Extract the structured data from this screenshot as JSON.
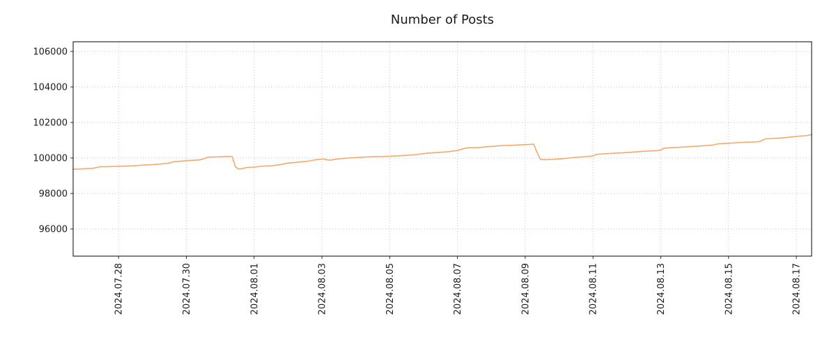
{
  "title": "Number of Posts",
  "colors": {
    "background": "#ffffff",
    "line": "#f4a96c",
    "grid": "#b3b3b3",
    "frame": "#000000",
    "text": "#1a1a1a"
  },
  "chart_data": {
    "type": "line",
    "title": "Number of Posts",
    "xlabel": "",
    "ylabel": "",
    "grid": true,
    "legend": false,
    "x_unit": "days since 2024-07-26 00:00",
    "xlim": [
      0.66,
      22.45
    ],
    "ylim": [
      94470,
      106550
    ],
    "y_ticks": [
      96000,
      98000,
      100000,
      102000,
      104000,
      106000
    ],
    "x_ticks": [
      2,
      4,
      6,
      8,
      10,
      12,
      14,
      16,
      18,
      20,
      22
    ],
    "x_tick_labels": [
      "2024.07.28",
      "2024.07.30",
      "2024.08.01",
      "2024.08.03",
      "2024.08.05",
      "2024.08.07",
      "2024.08.09",
      "2024.08.11",
      "2024.08.13",
      "2024.08.15",
      "2024.08.17"
    ],
    "line_color": "#f4a96c",
    "grid_color": "#b3b3b3",
    "text_color": "#1a1a1a",
    "series": [
      {
        "name": "Number of Posts",
        "points": [
          [
            0.66,
            99370
          ],
          [
            0.85,
            99375
          ],
          [
            1.0,
            99400
          ],
          [
            1.25,
            99420
          ],
          [
            1.45,
            99505
          ],
          [
            1.7,
            99515
          ],
          [
            1.95,
            99530
          ],
          [
            2.2,
            99545
          ],
          [
            2.45,
            99560
          ],
          [
            2.7,
            99600
          ],
          [
            2.95,
            99620
          ],
          [
            3.2,
            99655
          ],
          [
            3.45,
            99700
          ],
          [
            3.65,
            99800
          ],
          [
            3.85,
            99820
          ],
          [
            4.0,
            99850
          ],
          [
            4.2,
            99870
          ],
          [
            4.4,
            99895
          ],
          [
            4.5,
            99950
          ],
          [
            4.65,
            100050
          ],
          [
            4.85,
            100060
          ],
          [
            5.05,
            100070
          ],
          [
            5.2,
            100090
          ],
          [
            5.35,
            100080
          ],
          [
            5.45,
            99500
          ],
          [
            5.55,
            99370
          ],
          [
            5.65,
            99405
          ],
          [
            5.8,
            99470
          ],
          [
            5.95,
            99480
          ],
          [
            6.1,
            99505
          ],
          [
            6.3,
            99550
          ],
          [
            6.5,
            99560
          ],
          [
            6.7,
            99605
          ],
          [
            6.9,
            99680
          ],
          [
            7.05,
            99720
          ],
          [
            7.2,
            99750
          ],
          [
            7.4,
            99790
          ],
          [
            7.6,
            99820
          ],
          [
            7.8,
            99900
          ],
          [
            7.95,
            99925
          ],
          [
            8.05,
            99950
          ],
          [
            8.15,
            99900
          ],
          [
            8.25,
            99880
          ],
          [
            8.4,
            99930
          ],
          [
            8.55,
            99960
          ],
          [
            8.7,
            99990
          ],
          [
            8.9,
            100010
          ],
          [
            9.1,
            100030
          ],
          [
            9.3,
            100060
          ],
          [
            9.5,
            100070
          ],
          [
            9.7,
            100080
          ],
          [
            9.9,
            100090
          ],
          [
            10.1,
            100110
          ],
          [
            10.3,
            100130
          ],
          [
            10.5,
            100150
          ],
          [
            10.7,
            100175
          ],
          [
            10.9,
            100220
          ],
          [
            11.1,
            100270
          ],
          [
            11.3,
            100300
          ],
          [
            11.5,
            100320
          ],
          [
            11.7,
            100350
          ],
          [
            11.9,
            100400
          ],
          [
            12.0,
            100425
          ],
          [
            12.1,
            100480
          ],
          [
            12.25,
            100560
          ],
          [
            12.4,
            100590
          ],
          [
            12.55,
            100575
          ],
          [
            12.7,
            100600
          ],
          [
            12.9,
            100640
          ],
          [
            13.1,
            100670
          ],
          [
            13.3,
            100700
          ],
          [
            13.5,
            100710
          ],
          [
            13.7,
            100720
          ],
          [
            13.9,
            100740
          ],
          [
            14.1,
            100760
          ],
          [
            14.25,
            100780
          ],
          [
            14.35,
            100300
          ],
          [
            14.45,
            99920
          ],
          [
            14.6,
            99905
          ],
          [
            14.8,
            99920
          ],
          [
            15.0,
            99950
          ],
          [
            15.2,
            99980
          ],
          [
            15.4,
            100020
          ],
          [
            15.6,
            100050
          ],
          [
            15.8,
            100080
          ],
          [
            16.0,
            100120
          ],
          [
            16.1,
            100205
          ],
          [
            16.3,
            100230
          ],
          [
            16.5,
            100260
          ],
          [
            16.7,
            100280
          ],
          [
            16.9,
            100300
          ],
          [
            17.1,
            100320
          ],
          [
            17.3,
            100350
          ],
          [
            17.5,
            100380
          ],
          [
            17.7,
            100400
          ],
          [
            17.9,
            100420
          ],
          [
            18.0,
            100450
          ],
          [
            18.1,
            100550
          ],
          [
            18.3,
            100580
          ],
          [
            18.5,
            100600
          ],
          [
            18.7,
            100620
          ],
          [
            18.9,
            100650
          ],
          [
            19.1,
            100670
          ],
          [
            19.3,
            100700
          ],
          [
            19.5,
            100720
          ],
          [
            19.7,
            100800
          ],
          [
            19.9,
            100820
          ],
          [
            20.1,
            100840
          ],
          [
            20.3,
            100870
          ],
          [
            20.5,
            100890
          ],
          [
            20.7,
            100900
          ],
          [
            20.9,
            100920
          ],
          [
            21.1,
            101080
          ],
          [
            21.3,
            101100
          ],
          [
            21.5,
            101120
          ],
          [
            21.7,
            101150
          ],
          [
            21.9,
            101200
          ],
          [
            22.1,
            101230
          ],
          [
            22.3,
            101255
          ],
          [
            22.45,
            101330
          ]
        ]
      }
    ]
  }
}
